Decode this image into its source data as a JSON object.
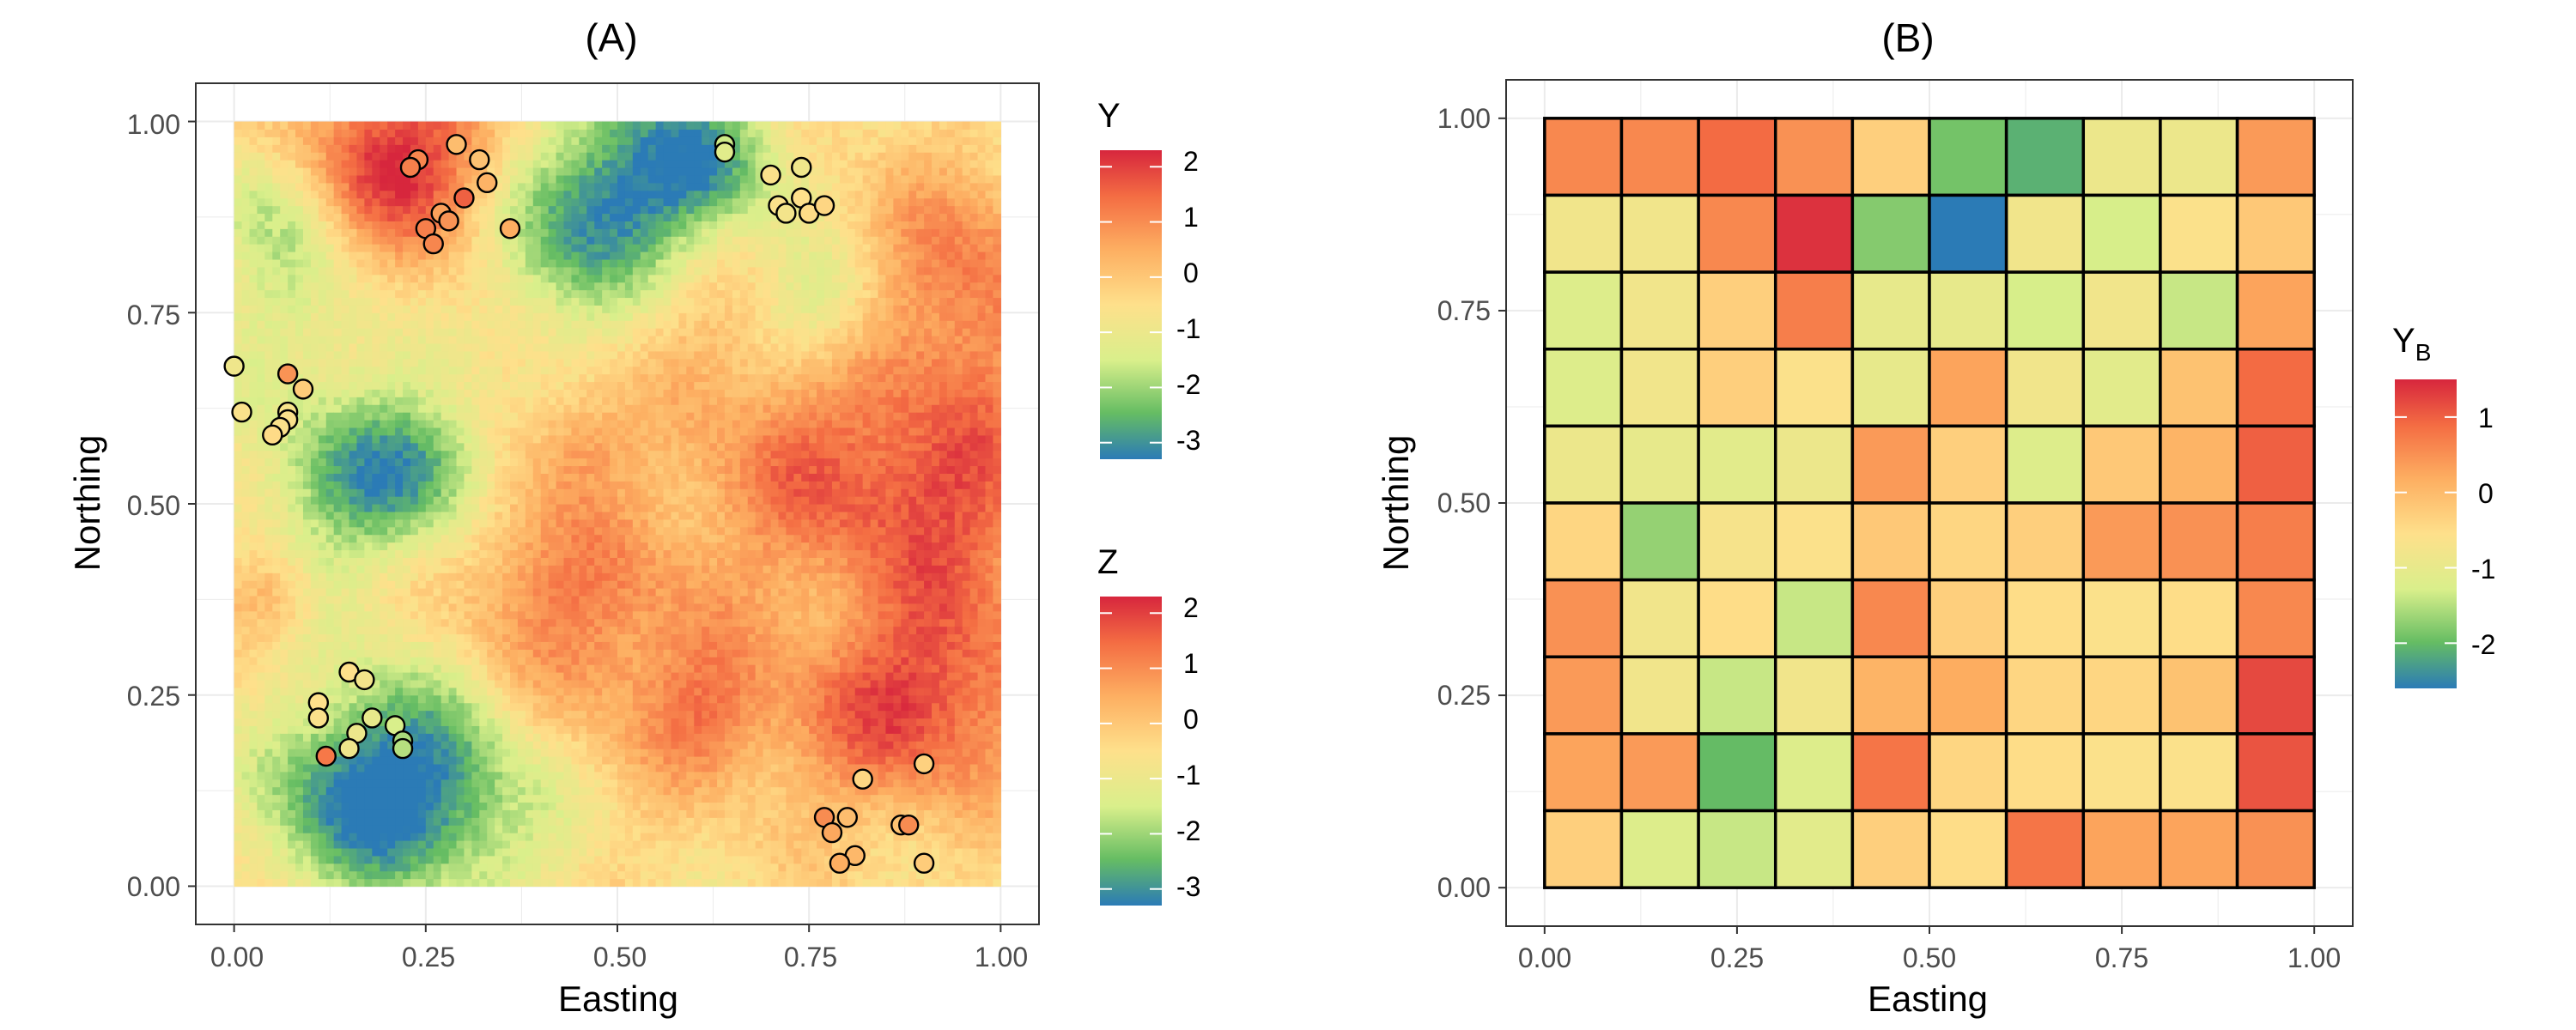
{
  "chart_data": [
    {
      "type": "heatmap",
      "title": "(A)",
      "xlabel": "Easting",
      "ylabel": "Northing",
      "xlim": [
        -0.05,
        1.05
      ],
      "ylim": [
        -0.05,
        1.05
      ],
      "xticks": [
        "0.00",
        "0.25",
        "0.50",
        "0.75",
        "1.00"
      ],
      "yticks": [
        "0.00",
        "0.25",
        "0.50",
        "0.75",
        "1.00"
      ],
      "grid_resolution": 100,
      "field_description": "Continuous latent surface Y on unit square",
      "legends": [
        {
          "title": "Y",
          "range": [
            -3.3,
            2.3
          ],
          "ticks": [
            "2",
            "1",
            "0",
            "-1",
            "-2",
            "-3"
          ],
          "tick_values": [
            2,
            1,
            0,
            -1,
            -2,
            -3
          ]
        },
        {
          "title": "Z",
          "range": [
            -3.3,
            2.3
          ],
          "ticks": [
            "2",
            "1",
            "0",
            "-1",
            "-2",
            "-3"
          ],
          "tick_values": [
            2,
            1,
            0,
            -1,
            -2,
            -3
          ]
        }
      ],
      "points": [
        {
          "x": 0.24,
          "y": 0.95,
          "z": 1.1
        },
        {
          "x": 0.23,
          "y": 0.94,
          "z": 1.2
        },
        {
          "x": 0.29,
          "y": 0.97,
          "z": 0.2
        },
        {
          "x": 0.32,
          "y": 0.95,
          "z": 0.1
        },
        {
          "x": 0.33,
          "y": 0.92,
          "z": 0.4
        },
        {
          "x": 0.3,
          "y": 0.9,
          "z": 1.6
        },
        {
          "x": 0.27,
          "y": 0.88,
          "z": 0.7
        },
        {
          "x": 0.28,
          "y": 0.87,
          "z": 0.9
        },
        {
          "x": 0.25,
          "y": 0.86,
          "z": 1.2
        },
        {
          "x": 0.26,
          "y": 0.84,
          "z": 1.1
        },
        {
          "x": 0.36,
          "y": 0.86,
          "z": 0.5
        },
        {
          "x": 0.64,
          "y": 0.97,
          "z": -1.6
        },
        {
          "x": 0.64,
          "y": 0.96,
          "z": -1.3
        },
        {
          "x": 0.7,
          "y": 0.93,
          "z": -0.6
        },
        {
          "x": 0.74,
          "y": 0.94,
          "z": -0.9
        },
        {
          "x": 0.71,
          "y": 0.89,
          "z": -0.6
        },
        {
          "x": 0.72,
          "y": 0.88,
          "z": -0.8
        },
        {
          "x": 0.74,
          "y": 0.9,
          "z": -0.5
        },
        {
          "x": 0.75,
          "y": 0.88,
          "z": -0.4
        },
        {
          "x": 0.77,
          "y": 0.89,
          "z": -0.3
        },
        {
          "x": 0.0,
          "y": 0.68,
          "z": -0.9
        },
        {
          "x": 0.01,
          "y": 0.62,
          "z": -0.6
        },
        {
          "x": 0.07,
          "y": 0.67,
          "z": 0.9
        },
        {
          "x": 0.09,
          "y": 0.65,
          "z": -0.1
        },
        {
          "x": 0.07,
          "y": 0.62,
          "z": -0.7
        },
        {
          "x": 0.07,
          "y": 0.61,
          "z": -0.6
        },
        {
          "x": 0.06,
          "y": 0.6,
          "z": -0.6
        },
        {
          "x": 0.05,
          "y": 0.59,
          "z": -0.4
        },
        {
          "x": 0.15,
          "y": 0.28,
          "z": -0.5
        },
        {
          "x": 0.17,
          "y": 0.27,
          "z": -0.8
        },
        {
          "x": 0.11,
          "y": 0.24,
          "z": -0.5
        },
        {
          "x": 0.11,
          "y": 0.22,
          "z": -0.6
        },
        {
          "x": 0.18,
          "y": 0.22,
          "z": -1.1
        },
        {
          "x": 0.21,
          "y": 0.21,
          "z": -1.5
        },
        {
          "x": 0.16,
          "y": 0.2,
          "z": -1.0
        },
        {
          "x": 0.22,
          "y": 0.19,
          "z": -1.9
        },
        {
          "x": 0.22,
          "y": 0.18,
          "z": -1.8
        },
        {
          "x": 0.15,
          "y": 0.18,
          "z": -0.9
        },
        {
          "x": 0.12,
          "y": 0.17,
          "z": 1.3
        },
        {
          "x": 0.82,
          "y": 0.14,
          "z": -0.3
        },
        {
          "x": 0.9,
          "y": 0.16,
          "z": -0.2
        },
        {
          "x": 0.77,
          "y": 0.09,
          "z": 1.0
        },
        {
          "x": 0.8,
          "y": 0.09,
          "z": 0.2
        },
        {
          "x": 0.78,
          "y": 0.07,
          "z": 0.6
        },
        {
          "x": 0.87,
          "y": 0.08,
          "z": 0.1
        },
        {
          "x": 0.88,
          "y": 0.08,
          "z": 1.0
        },
        {
          "x": 0.81,
          "y": 0.04,
          "z": 0.3
        },
        {
          "x": 0.79,
          "y": 0.03,
          "z": 0.5
        },
        {
          "x": 0.9,
          "y": 0.03,
          "z": -0.1
        }
      ]
    },
    {
      "type": "heatmap",
      "title": "(B)",
      "xlabel": "Easting",
      "ylabel": "Northing",
      "xlim": [
        -0.05,
        1.05
      ],
      "ylim": [
        -0.05,
        1.05
      ],
      "xticks": [
        "0.00",
        "0.25",
        "0.50",
        "0.75",
        "1.00"
      ],
      "yticks": [
        "0.00",
        "0.25",
        "0.50",
        "0.75",
        "1.00"
      ],
      "legend": {
        "title": "Y",
        "subscript": "B",
        "range": [
          -2.6,
          1.5
        ],
        "ticks": [
          "1",
          "0",
          "-1",
          "-2"
        ],
        "tick_values": [
          1,
          0,
          -1,
          -2
        ]
      },
      "rows_top_to_bottom": [
        [
          0.6,
          0.6,
          0.9,
          0.5,
          -0.3,
          -1.9,
          -2.1,
          -0.9,
          -0.9,
          0.4
        ],
        [
          -0.8,
          -0.8,
          0.6,
          1.4,
          -1.8,
          -2.6,
          -0.8,
          -1.3,
          -0.6,
          -0.2
        ],
        [
          -1.2,
          -0.8,
          -0.3,
          0.7,
          -1.0,
          -1.0,
          -1.3,
          -0.8,
          -1.4,
          0.3
        ],
        [
          -1.2,
          -0.8,
          -0.3,
          -0.6,
          -1.0,
          0.3,
          -0.8,
          -1.1,
          -0.1,
          0.9
        ],
        [
          -0.9,
          -1.0,
          -1.1,
          -0.9,
          0.4,
          -0.3,
          -1.2,
          -0.2,
          0.1,
          1.0
        ],
        [
          -0.4,
          -1.7,
          -0.7,
          -0.6,
          -0.2,
          -0.4,
          -0.3,
          0.4,
          0.5,
          0.7
        ],
        [
          0.5,
          -0.8,
          -0.5,
          -1.4,
          0.6,
          -0.3,
          -0.5,
          -0.6,
          -0.5,
          0.6
        ],
        [
          0.4,
          -0.8,
          -1.4,
          -0.8,
          0.1,
          0.2,
          -0.4,
          -0.4,
          -0.1,
          1.2
        ],
        [
          0.3,
          0.4,
          -2.0,
          -1.2,
          0.8,
          -0.4,
          -0.5,
          -0.6,
          -0.6,
          1.1
        ],
        [
          -0.3,
          -1.2,
          -1.4,
          -1.1,
          -0.3,
          -0.5,
          0.8,
          0.3,
          0.3,
          0.5
        ]
      ]
    }
  ]
}
